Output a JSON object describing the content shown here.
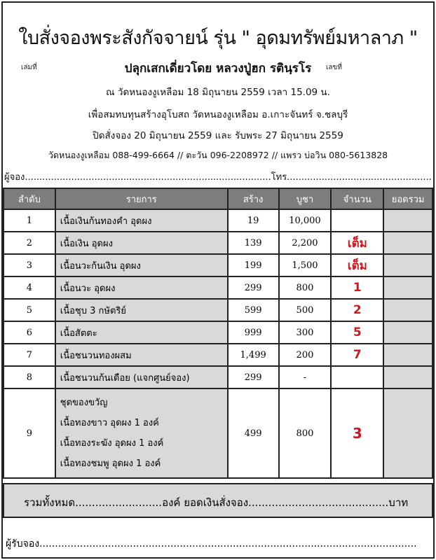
{
  "title": "ใบสั่งจองพระสังกัจจายน์ รุ่น \" อุดมทรัพย์มหาลาภ \"",
  "book_label": "เล่มที่",
  "number_label": "เลขที่",
  "subtitle": "ปลุกเสกเดี่ยวโดย หลวงปู่ฮก รตินฺรโร",
  "lines": [
    "ณ วัดหนองงูเหลือม 18 มิถุนายน 2559 เวลา 15.09 น.",
    "เพื่อสมทบทุนสร้างอุโบสถ วัดหนองงูเหลือม อ.เกาะจันทร์ จ.ชลบุรี",
    "ปิดสั่งจอง 20 มิถุนายน 2559 และ รับพระ 27 มิถุนายน 2559",
    "วัดหนองงูเหลือม 088-499-6664 // ตะวัน 096-2208972 // แพรว บ่อวิน 080-5613828"
  ],
  "orderer_line": "ผู้จอง.....................................................................................โทร...........................................................",
  "table": {
    "headers": [
      "ลำดับ",
      "รายการ",
      "สร้าง",
      "บูชา",
      "จำนวน",
      "ยอดรวม"
    ],
    "rows": [
      {
        "no": "1",
        "item": "เนื้อเงินก้นทองคำ อุดผง",
        "made": "19",
        "price": "10,000",
        "qty": ""
      },
      {
        "no": "2",
        "item": "เนื้อเงิน อุดผง",
        "made": "139",
        "price": "2,200",
        "qty": "เต็ม"
      },
      {
        "no": "3",
        "item": "เนื้อนวะก้นเงิน อุดผง",
        "made": "199",
        "price": "1,500",
        "qty": "เต็ม"
      },
      {
        "no": "4",
        "item": "เนื้อนวะ อุดผง",
        "made": "299",
        "price": "800",
        "qty": "1"
      },
      {
        "no": "5",
        "item": "เนื้อชุบ 3 กษัตริย์",
        "made": "599",
        "price": "500",
        "qty": "2"
      },
      {
        "no": "6",
        "item": "เนื้อสัตตะ",
        "made": "999",
        "price": "300",
        "qty": "5"
      },
      {
        "no": "7",
        "item": "เนื้อชนวนทองผสม",
        "made": "1,499",
        "price": "200",
        "qty": "7"
      },
      {
        "no": "8",
        "item": "เนื้อชนวนก้นเดือย (แจกศูนย์จอง)",
        "made": "299",
        "price": "-",
        "qty": ""
      }
    ],
    "set_row": {
      "no": "9",
      "lines": [
        "ชุดของขวัญ",
        "เนื้อทองขาว อุดผง 1 องค์",
        "เนื้อทองระฆัง อุดผง 1 องค์",
        "เนื้อทองชมพู อุดผง 1 องค์"
      ],
      "made": "499",
      "price": "800",
      "qty": "3"
    }
  },
  "summary": "รวมทั้งหมด..........................องค์ ยอดเงินสั่งจอง..........................................บาท",
  "receiver": "ผู้รับจอง.........................................................................................................................",
  "colors": {
    "header": "#7d7d7d",
    "shade": "#d9d9d9",
    "qty_red": "#d0161c"
  }
}
